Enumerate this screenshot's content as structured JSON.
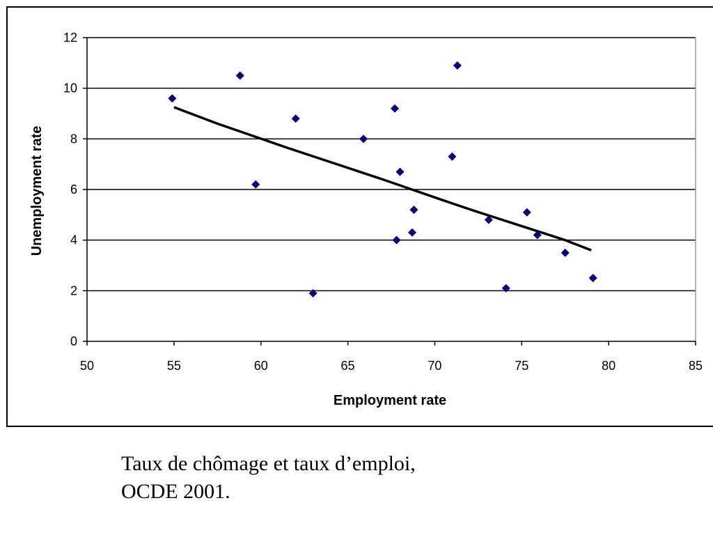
{
  "chart_data": {
    "type": "scatter",
    "title": "",
    "xlabel": "Employment rate",
    "ylabel": "Unemployment rate",
    "xlim": [
      50,
      85
    ],
    "ylim": [
      0,
      12
    ],
    "xticks": [
      50,
      55,
      60,
      65,
      70,
      75,
      80,
      85
    ],
    "yticks": [
      0,
      2,
      4,
      6,
      8,
      10,
      12
    ],
    "grid": "horizontal",
    "legend": "none",
    "marker": "diamond",
    "marker_color": "#000080",
    "points": [
      {
        "x": 54.9,
        "y": 9.6
      },
      {
        "x": 58.8,
        "y": 10.5
      },
      {
        "x": 59.7,
        "y": 6.2
      },
      {
        "x": 62.0,
        "y": 8.8
      },
      {
        "x": 63.0,
        "y": 1.9
      },
      {
        "x": 65.9,
        "y": 8.0
      },
      {
        "x": 67.7,
        "y": 9.2
      },
      {
        "x": 67.8,
        "y": 4.0
      },
      {
        "x": 68.0,
        "y": 6.7
      },
      {
        "x": 68.7,
        "y": 4.3
      },
      {
        "x": 68.8,
        "y": 5.2
      },
      {
        "x": 71.0,
        "y": 7.3
      },
      {
        "x": 71.3,
        "y": 10.9
      },
      {
        "x": 73.1,
        "y": 4.8
      },
      {
        "x": 74.1,
        "y": 2.1
      },
      {
        "x": 75.3,
        "y": 5.1
      },
      {
        "x": 75.9,
        "y": 4.2
      },
      {
        "x": 77.5,
        "y": 3.5
      },
      {
        "x": 79.1,
        "y": 2.5
      }
    ],
    "trendline": {
      "color": "#000000",
      "points": [
        {
          "x": 55.0,
          "y": 9.25
        },
        {
          "x": 57.5,
          "y": 8.6
        },
        {
          "x": 61.5,
          "y": 7.65
        },
        {
          "x": 67.0,
          "y": 6.4
        },
        {
          "x": 71.0,
          "y": 5.45
        },
        {
          "x": 72.3,
          "y": 5.15
        },
        {
          "x": 77.5,
          "y": 4.0
        },
        {
          "x": 79.0,
          "y": 3.6
        }
      ]
    }
  },
  "caption": {
    "line1": "Taux de chômage et taux d’emploi,",
    "line2": "OCDE 2001."
  }
}
